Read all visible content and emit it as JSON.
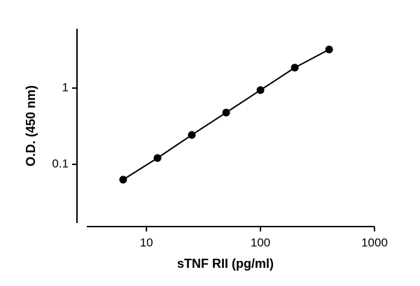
{
  "chart_data": {
    "type": "line",
    "x_label": "sTNF RII (pg/ml)",
    "y_label": "O.D. (450 nm)",
    "x": [
      6.25,
      12.5,
      25,
      50,
      100,
      200,
      400
    ],
    "series": [
      {
        "color": "#000000",
        "values": [
          0.063,
          0.121,
          0.243,
          0.477,
          0.94,
          1.85,
          3.2
        ]
      }
    ],
    "xlim": [
      3,
      1000
    ],
    "ylim": [
      0.017,
      6
    ],
    "xticks": [
      10,
      100,
      1000
    ],
    "yticks": [
      0.1,
      1
    ],
    "xscale": "log",
    "yscale": "log",
    "markers": true
  }
}
